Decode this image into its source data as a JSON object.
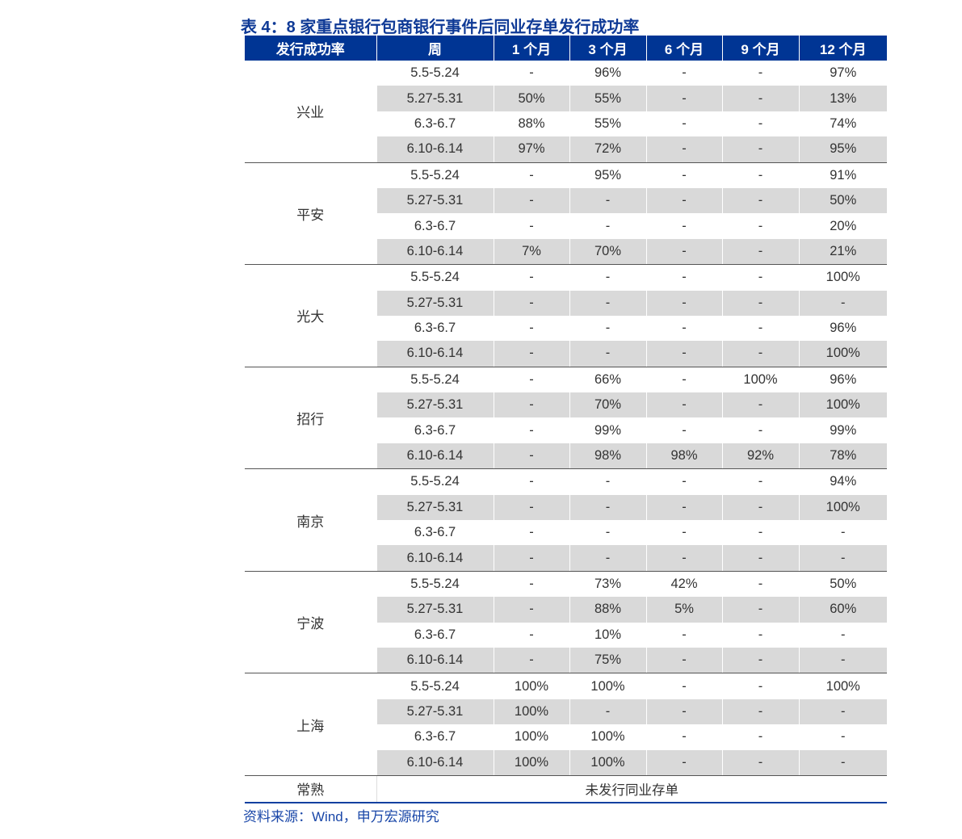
{
  "title": "表 4：8 家重点银行包商银行事件后同业存单发行成功率",
  "headers": [
    "发行成功率",
    "周",
    "1 个月",
    "3 个月",
    "6 个月",
    "9 个月",
    "12 个月"
  ],
  "banks": [
    {
      "name": "兴业",
      "rows": [
        [
          "5.5-5.24",
          "-",
          "96%",
          "-",
          "-",
          "97%"
        ],
        [
          "5.27-5.31",
          "50%",
          "55%",
          "-",
          "-",
          "13%"
        ],
        [
          "6.3-6.7",
          "88%",
          "55%",
          "-",
          "-",
          "74%"
        ],
        [
          "6.10-6.14",
          "97%",
          "72%",
          "-",
          "-",
          "95%"
        ]
      ]
    },
    {
      "name": "平安",
      "rows": [
        [
          "5.5-5.24",
          "-",
          "95%",
          "-",
          "-",
          "91%"
        ],
        [
          "5.27-5.31",
          "-",
          "-",
          "-",
          "-",
          "50%"
        ],
        [
          "6.3-6.7",
          "-",
          "-",
          "-",
          "-",
          "20%"
        ],
        [
          "6.10-6.14",
          "7%",
          "70%",
          "-",
          "-",
          "21%"
        ]
      ]
    },
    {
      "name": "光大",
      "rows": [
        [
          "5.5-5.24",
          "-",
          "-",
          "-",
          "-",
          "100%"
        ],
        [
          "5.27-5.31",
          "-",
          "-",
          "-",
          "-",
          "-"
        ],
        [
          "6.3-6.7",
          "-",
          "-",
          "-",
          "-",
          "96%"
        ],
        [
          "6.10-6.14",
          "-",
          "-",
          "-",
          "-",
          "100%"
        ]
      ]
    },
    {
      "name": "招行",
      "rows": [
        [
          "5.5-5.24",
          "-",
          "66%",
          "-",
          "100%",
          "96%"
        ],
        [
          "5.27-5.31",
          "-",
          "70%",
          "-",
          "-",
          "100%"
        ],
        [
          "6.3-6.7",
          "-",
          "99%",
          "-",
          "-",
          "99%"
        ],
        [
          "6.10-6.14",
          "-",
          "98%",
          "98%",
          "92%",
          "78%"
        ]
      ]
    },
    {
      "name": "南京",
      "rows": [
        [
          "5.5-5.24",
          "-",
          "-",
          "-",
          "-",
          "94%"
        ],
        [
          "5.27-5.31",
          "-",
          "-",
          "-",
          "-",
          "100%"
        ],
        [
          "6.3-6.7",
          "-",
          "-",
          "-",
          "-",
          "-"
        ],
        [
          "6.10-6.14",
          "-",
          "-",
          "-",
          "-",
          "-"
        ]
      ]
    },
    {
      "name": "宁波",
      "rows": [
        [
          "5.5-5.24",
          "-",
          "73%",
          "42%",
          "-",
          "50%"
        ],
        [
          "5.27-5.31",
          "-",
          "88%",
          "5%",
          "-",
          "60%"
        ],
        [
          "6.3-6.7",
          "-",
          "10%",
          "-",
          "-",
          "-"
        ],
        [
          "6.10-6.14",
          "-",
          "75%",
          "-",
          "-",
          "-"
        ]
      ]
    },
    {
      "name": "上海",
      "rows": [
        [
          "5.5-5.24",
          "100%",
          "100%",
          "-",
          "-",
          "100%"
        ],
        [
          "5.27-5.31",
          "100%",
          "-",
          "-",
          "-",
          "-"
        ],
        [
          "6.3-6.7",
          "100%",
          "100%",
          "-",
          "-",
          "-"
        ],
        [
          "6.10-6.14",
          "100%",
          "100%",
          "-",
          "-",
          "-"
        ]
      ]
    }
  ],
  "last_row": {
    "name": "常熟",
    "note": "未发行同业存单"
  },
  "source": "资料来源：Wind，申万宏源研究",
  "colors": {
    "header_bg": "#003594",
    "title": "#0f3a96",
    "stripe": "#d9d9d9"
  }
}
